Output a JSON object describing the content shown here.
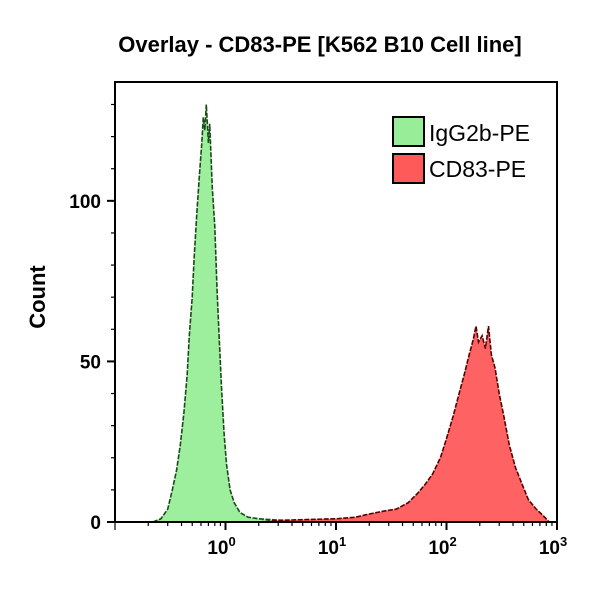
{
  "chart_data": {
    "type": "area",
    "title": "Overlay - CD83-PE [K562 B10 Cell line]",
    "xlabel": "",
    "ylabel": "Count",
    "xscale": "log",
    "xlim": [
      0.1,
      1000
    ],
    "ylim": [
      0,
      137
    ],
    "xticks": [
      {
        "value": 1,
        "base": "10",
        "exp": "0"
      },
      {
        "value": 10,
        "base": "10",
        "exp": "1"
      },
      {
        "value": 100,
        "base": "10",
        "exp": "2"
      },
      {
        "value": 1000,
        "base": "10",
        "exp": "3"
      }
    ],
    "yticks": [
      {
        "value": 0,
        "label": "0"
      },
      {
        "value": 50,
        "label": "50"
      },
      {
        "value": 100,
        "label": "100"
      }
    ],
    "grid": false,
    "legend_position": "top-right",
    "series": [
      {
        "name": "IgG2b-PE",
        "fill": "#98ee98",
        "stroke": "#1a4a1a",
        "points": [
          [
            0.22,
            0
          ],
          [
            0.26,
            1
          ],
          [
            0.3,
            4
          ],
          [
            0.33,
            10
          ],
          [
            0.36,
            16
          ],
          [
            0.39,
            24
          ],
          [
            0.42,
            34
          ],
          [
            0.45,
            46
          ],
          [
            0.47,
            58
          ],
          [
            0.5,
            70
          ],
          [
            0.52,
            82
          ],
          [
            0.55,
            96
          ],
          [
            0.58,
            108
          ],
          [
            0.61,
            118
          ],
          [
            0.63,
            126
          ],
          [
            0.65,
            122
          ],
          [
            0.67,
            130
          ],
          [
            0.7,
            118
          ],
          [
            0.72,
            124
          ],
          [
            0.76,
            104
          ],
          [
            0.8,
            92
          ],
          [
            0.84,
            72
          ],
          [
            0.88,
            56
          ],
          [
            0.92,
            42
          ],
          [
            0.97,
            28
          ],
          [
            1.02,
            18
          ],
          [
            1.1,
            10
          ],
          [
            1.2,
            6
          ],
          [
            1.35,
            3
          ],
          [
            1.6,
            1.5
          ],
          [
            2,
            1
          ],
          [
            3,
            0.6
          ],
          [
            5,
            0.3
          ],
          [
            8,
            0.2
          ],
          [
            10,
            0
          ]
        ]
      },
      {
        "name": "CD83-PE",
        "fill": "#ff5a5a",
        "stroke": "#5a0000",
        "points": [
          [
            2,
            0
          ],
          [
            3,
            0.5
          ],
          [
            6,
            0.8
          ],
          [
            10,
            1
          ],
          [
            15,
            1.5
          ],
          [
            20,
            2.5
          ],
          [
            28,
            3.5
          ],
          [
            35,
            4
          ],
          [
            45,
            6
          ],
          [
            55,
            9
          ],
          [
            65,
            12
          ],
          [
            75,
            15
          ],
          [
            88,
            20
          ],
          [
            100,
            26
          ],
          [
            115,
            33
          ],
          [
            130,
            40
          ],
          [
            145,
            46
          ],
          [
            160,
            52
          ],
          [
            175,
            57
          ],
          [
            185,
            61
          ],
          [
            195,
            56
          ],
          [
            210,
            58
          ],
          [
            225,
            54
          ],
          [
            240,
            61
          ],
          [
            255,
            52
          ],
          [
            275,
            48
          ],
          [
            300,
            40
          ],
          [
            330,
            33
          ],
          [
            370,
            24
          ],
          [
            420,
            17
          ],
          [
            480,
            12
          ],
          [
            550,
            7
          ],
          [
            650,
            4
          ],
          [
            750,
            2
          ],
          [
            850,
            0
          ]
        ]
      }
    ]
  }
}
